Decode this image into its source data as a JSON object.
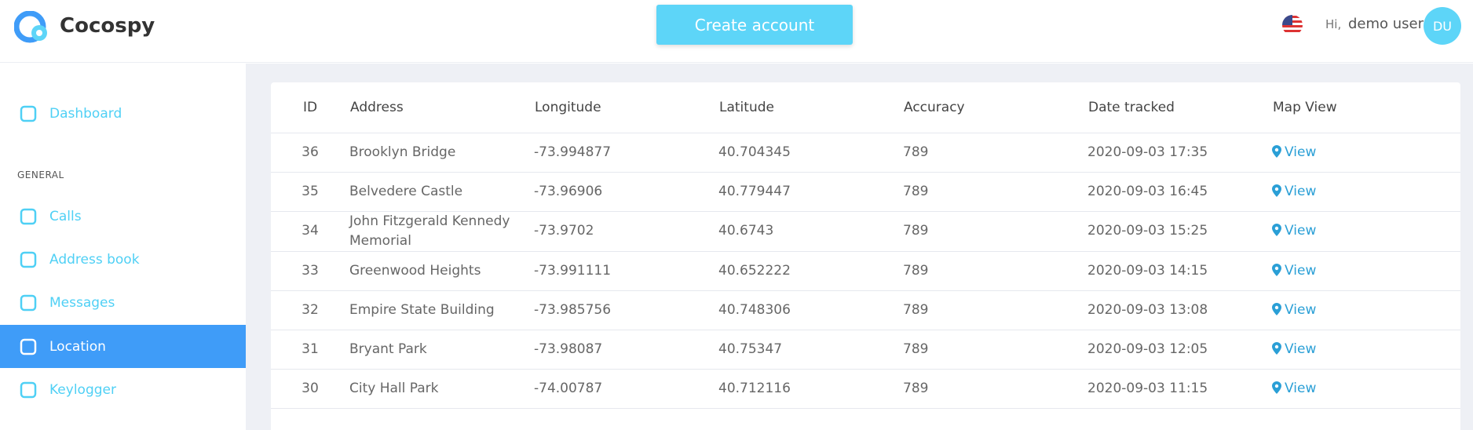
{
  "header": {
    "brand": "Cocospy",
    "button": "Create account",
    "greeting": "Hi,",
    "user": "demo user",
    "avatar": "DU"
  },
  "sidebar": {
    "top": [
      "Dashboard"
    ],
    "section": "GENERAL",
    "items": [
      "Calls",
      "Address book",
      "Messages",
      "Location",
      "Keylogger"
    ],
    "active": "Location"
  },
  "table": {
    "columns": [
      "ID",
      "Address",
      "Longitude",
      "Latitude",
      "Accuracy",
      "Date tracked",
      "Map View"
    ],
    "rows": [
      [
        "36",
        "Brooklyn Bridge",
        "-73.994877",
        "40.704345",
        "789",
        "2020-09-03 17:35",
        "View"
      ],
      [
        "35",
        "Belvedere Castle",
        "-73.96906",
        "40.779447",
        "789",
        "2020-09-03 16:45",
        "View"
      ],
      [
        "34",
        "John Fitzgerald Kennedy Memorial",
        "-73.9702",
        "40.6743",
        "789",
        "2020-09-03 15:25",
        "View"
      ],
      [
        "33",
        "Greenwood Heights",
        "-73.991111",
        "40.652222",
        "789",
        "2020-09-03 14:15",
        "View"
      ],
      [
        "32",
        "Empire State Building",
        "-73.985756",
        "40.748306",
        "789",
        "2020-09-03 13:08",
        "View"
      ],
      [
        "31",
        "Bryant Park",
        "-73.98087",
        "40.75347",
        "789",
        "2020-09-03 12:05",
        "View"
      ],
      [
        "30",
        "City Hall Park",
        "-74.00787",
        "40.712116",
        "789",
        "2020-09-03 11:15",
        "View"
      ]
    ]
  }
}
